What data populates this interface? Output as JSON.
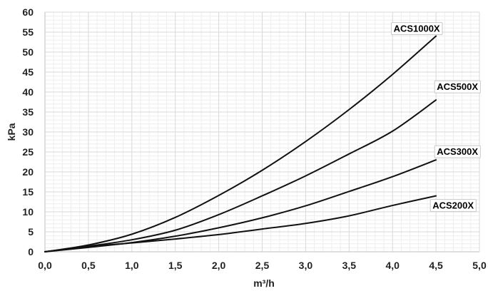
{
  "chart_data": {
    "type": "line",
    "xlabel": "m³/h",
    "ylabel": "kPa",
    "xlim": [
      0,
      5
    ],
    "ylim": [
      0,
      60
    ],
    "x_ticks": [
      "0,0",
      "0,5",
      "1,0",
      "1,5",
      "2,0",
      "2,5",
      "3,0",
      "3,5",
      "4,0",
      "4,5",
      "5,0"
    ],
    "y_ticks": [
      "0",
      "5",
      "10",
      "15",
      "20",
      "25",
      "30",
      "35",
      "40",
      "45",
      "50",
      "55",
      "60"
    ],
    "grid": true,
    "series": [
      {
        "name": "ACS1000X",
        "x": [
          0,
          0.5,
          1.0,
          1.5,
          2.0,
          2.5,
          3.0,
          3.5,
          4.0,
          4.5
        ],
        "y": [
          0,
          1.7,
          4.4,
          8.6,
          14.1,
          20.4,
          27.6,
          35.6,
          44.4,
          54.0
        ]
      },
      {
        "name": "ACS500X",
        "x": [
          0,
          0.5,
          1.0,
          1.5,
          2.0,
          2.5,
          3.0,
          3.5,
          4.0,
          4.5
        ],
        "y": [
          0,
          1.4,
          3.0,
          5.4,
          9.3,
          14.0,
          19.0,
          24.5,
          30.2,
          38.0
        ]
      },
      {
        "name": "ACS300X",
        "x": [
          0,
          0.5,
          1.0,
          1.5,
          2.0,
          2.5,
          3.0,
          3.5,
          4.0,
          4.5
        ],
        "y": [
          0,
          1.1,
          2.3,
          3.9,
          6.0,
          8.5,
          11.5,
          15.1,
          18.8,
          23.0
        ]
      },
      {
        "name": "ACS200X",
        "x": [
          0,
          0.5,
          1.0,
          1.5,
          2.0,
          2.5,
          3.0,
          3.5,
          4.0,
          4.5
        ],
        "y": [
          0,
          1.3,
          2.2,
          3.2,
          4.3,
          5.7,
          7.1,
          9.0,
          11.6,
          14.0
        ]
      }
    ],
    "line_color": "#111111",
    "grid_color": "#d9d9d9",
    "minor_grid_color": "#eeeeee"
  }
}
